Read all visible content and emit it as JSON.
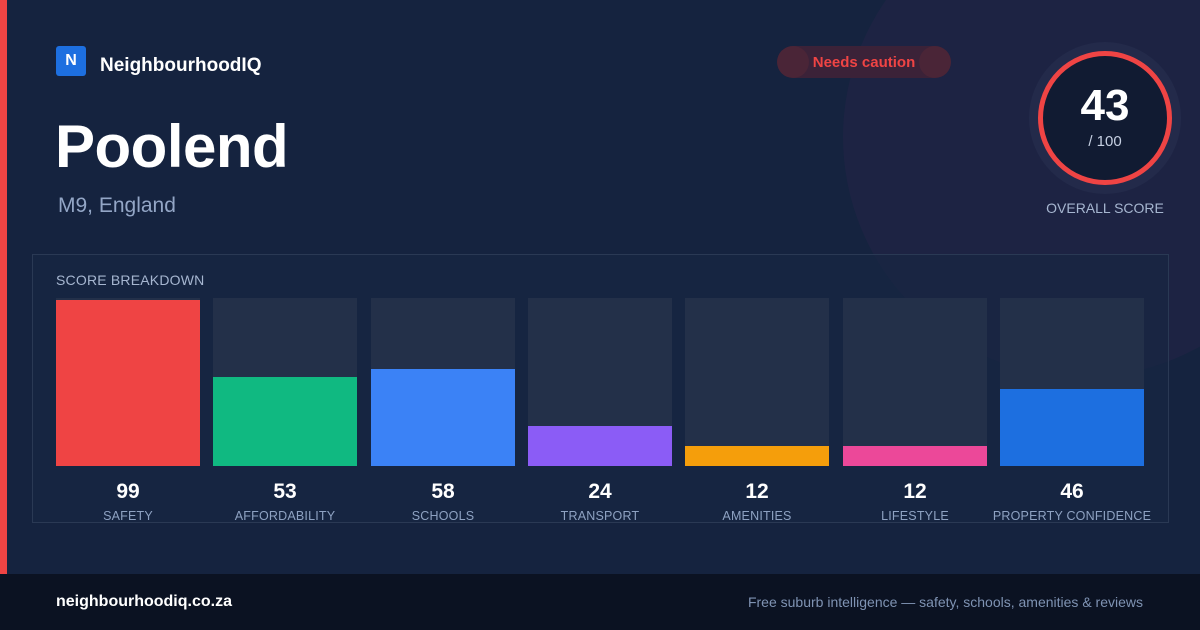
{
  "brand": {
    "logo_letter": "N",
    "name": "NeighbourhoodIQ",
    "logo_color": "#1d6fe0"
  },
  "badge": {
    "label": "Needs caution",
    "color": "#ef4444"
  },
  "suburb": {
    "name": "Poolend",
    "location": "M9, England"
  },
  "overall": {
    "score": "43",
    "max": "/ 100",
    "label": "OVERALL SCORE",
    "ring_color": "#ef4444"
  },
  "breakdown": {
    "title": "SCORE BREAKDOWN",
    "categories": [
      {
        "label": "SAFETY",
        "value": "99",
        "color": "#ef4444"
      },
      {
        "label": "AFFORDABILITY",
        "value": "53",
        "color": "#10b981"
      },
      {
        "label": "SCHOOLS",
        "value": "58",
        "color": "#3b82f6"
      },
      {
        "label": "TRANSPORT",
        "value": "24",
        "color": "#8b5cf6"
      },
      {
        "label": "AMENITIES",
        "value": "12",
        "color": "#f59e0b"
      },
      {
        "label": "LIFESTYLE",
        "value": "12",
        "color": "#ec4899"
      },
      {
        "label": "PROPERTY CONFIDENCE",
        "value": "46",
        "color": "#1d6fe0"
      }
    ]
  },
  "footer": {
    "domain": "neighbourhoodiq.co.za",
    "tagline": "Free suburb intelligence — safety, schools, amenities & reviews"
  }
}
